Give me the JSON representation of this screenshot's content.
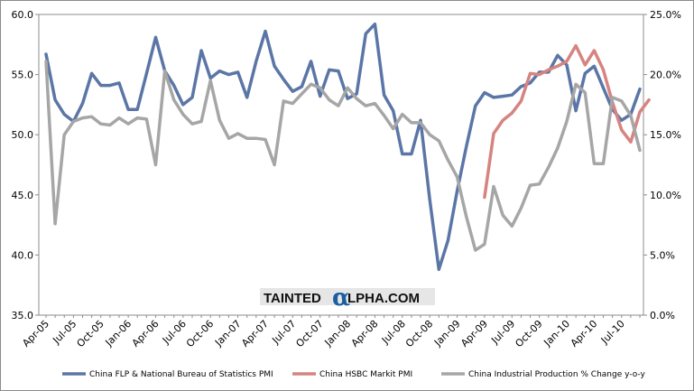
{
  "chart_data": {
    "type": "line",
    "title": "",
    "xlabel": "",
    "ylabel": "",
    "x_tick_labels": [
      "Apr-05",
      "Jul-05",
      "Oct-05",
      "Jan-06",
      "Apr-06",
      "Jul-06",
      "Oct-06",
      "Jan-07",
      "Apr-07",
      "Jul-07",
      "Oct-07",
      "Jan-08",
      "Apr-08",
      "Jul-08",
      "Oct-08",
      "Jan-09",
      "Apr-09",
      "Jul-09",
      "Oct-09",
      "Jan-10",
      "Apr-10",
      "Jul-10"
    ],
    "left_axis": {
      "ylim": [
        35.0,
        60.0
      ],
      "ticks": [
        "35.0",
        "40.0",
        "45.0",
        "50.0",
        "55.0",
        "60.0"
      ]
    },
    "right_axis": {
      "ylim": [
        0.0,
        25.0
      ],
      "ticks": [
        "0.0%",
        "5.0%",
        "10.0%",
        "15.0%",
        "20.0%",
        "25.0%"
      ]
    },
    "grid": false,
    "legend_position": "bottom",
    "months": [
      "Apr-05",
      "May-05",
      "Jun-05",
      "Jul-05",
      "Aug-05",
      "Sep-05",
      "Oct-05",
      "Nov-05",
      "Dec-05",
      "Jan-06",
      "Feb-06",
      "Mar-06",
      "Apr-06",
      "May-06",
      "Jun-06",
      "Jul-06",
      "Aug-06",
      "Sep-06",
      "Oct-06",
      "Nov-06",
      "Dec-06",
      "Jan-07",
      "Feb-07",
      "Mar-07",
      "Apr-07",
      "May-07",
      "Jun-07",
      "Jul-07",
      "Aug-07",
      "Sep-07",
      "Oct-07",
      "Nov-07",
      "Dec-07",
      "Jan-08",
      "Feb-08",
      "Mar-08",
      "Apr-08",
      "May-08",
      "Jun-08",
      "Jul-08",
      "Aug-08",
      "Sep-08",
      "Oct-08",
      "Nov-08",
      "Dec-08",
      "Jan-09",
      "Feb-09",
      "Mar-09",
      "Apr-09",
      "May-09",
      "Jun-09",
      "Jul-09",
      "Aug-09",
      "Sep-09",
      "Oct-09",
      "Nov-09",
      "Dec-09",
      "Jan-10",
      "Feb-10",
      "Mar-10",
      "Apr-10",
      "May-10",
      "Jun-10",
      "Jul-10",
      "Aug-10",
      "Sep-10"
    ],
    "series": [
      {
        "name": "China FLP & National Bureau of Statistics PMI",
        "axis": "left",
        "color": "#5b76a6",
        "start_index": 0,
        "values": [
          56.7,
          52.9,
          51.7,
          51.1,
          52.6,
          55.1,
          54.1,
          54.1,
          54.3,
          52.1,
          52.1,
          55.1,
          58.1,
          55.3,
          54.1,
          52.5,
          53.1,
          57.0,
          54.7,
          55.3,
          55.0,
          55.2,
          53.1,
          56.1,
          58.6,
          55.7,
          54.6,
          53.6,
          54.0,
          56.1,
          53.2,
          55.4,
          55.3,
          53.0,
          53.4,
          58.4,
          59.2,
          53.3,
          52.0,
          48.4,
          48.4,
          51.2,
          44.6,
          38.8,
          41.2,
          45.3,
          49.0,
          52.4,
          53.5,
          53.1,
          53.2,
          53.3,
          54.0,
          54.3,
          55.2,
          55.2,
          56.6,
          55.8,
          52.0,
          55.1,
          55.7,
          53.9,
          52.1,
          51.2,
          51.7,
          53.8
        ]
      },
      {
        "name": "China HSBC  Markit PMI",
        "axis": "left",
        "color": "#d58481",
        "start_index": 48,
        "values": [
          44.8,
          50.1,
          51.2,
          51.8,
          52.8,
          55.1,
          55.0,
          55.4,
          55.7,
          56.1,
          57.4,
          55.8,
          57.0,
          55.4,
          52.7,
          50.4,
          49.4,
          51.9,
          52.9
        ]
      },
      {
        "name": "China Industrial Production % Change y-o-y",
        "axis": "right",
        "color": "#a6a6a6",
        "start_index": 0,
        "values": [
          21.1,
          7.6,
          15.0,
          16.1,
          16.4,
          16.5,
          15.9,
          15.8,
          16.4,
          15.9,
          16.4,
          16.3,
          12.5,
          20.3,
          17.9,
          16.7,
          15.9,
          16.1,
          19.5,
          16.2,
          14.7,
          15.1,
          14.7,
          14.7,
          14.6,
          12.5,
          17.8,
          17.6,
          18.4,
          19.2,
          18.9,
          17.9,
          17.4,
          18.9,
          18.0,
          17.4,
          17.6,
          16.6,
          15.5,
          16.7,
          16.0,
          16.0,
          15.0,
          14.5,
          12.9,
          11.5,
          8.2,
          5.4,
          5.9,
          10.7,
          8.3,
          7.4,
          8.9,
          10.8,
          10.9,
          12.3,
          13.9,
          16.1,
          19.2,
          18.5,
          12.6,
          12.6,
          18.1,
          17.8,
          16.6,
          13.7
        ]
      }
    ]
  },
  "logo": {
    "text_before": "TAINTED",
    "glyph": "α",
    "text_after": "LPHA.COM",
    "accent_color": "#1a5fa0"
  }
}
